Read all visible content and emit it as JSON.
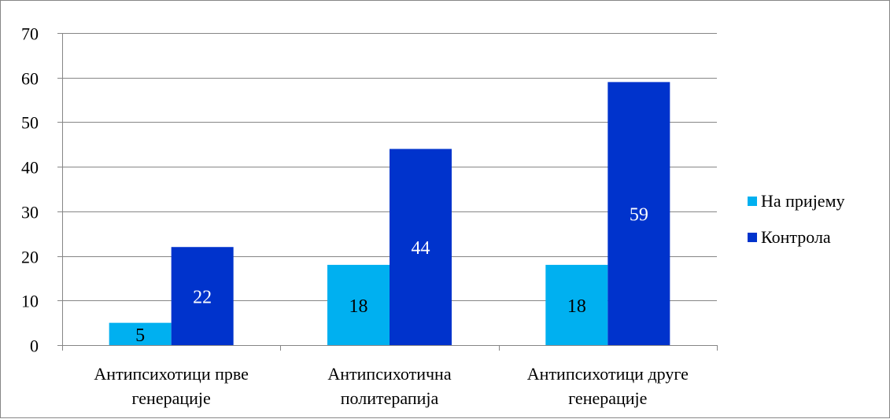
{
  "chart_data": {
    "type": "bar",
    "categories": [
      [
        "Антипсихотици прве",
        "генерације"
      ],
      [
        "Антипсихотична",
        "политерапија"
      ],
      [
        "Антипсихотици друге",
        "генерације"
      ]
    ],
    "series": [
      {
        "name": "На пријему",
        "values": [
          5,
          18,
          18
        ],
        "color": "#00B0F0",
        "label_color": "#000000"
      },
      {
        "name": "Контрола",
        "values": [
          22,
          44,
          59
        ],
        "color": "#0033CC",
        "label_color": "#ffffff"
      }
    ],
    "title": "",
    "xlabel": "",
    "ylabel": "",
    "ylim": [
      0,
      70
    ],
    "yticks": [
      0,
      10,
      20,
      30,
      40,
      50,
      60,
      70
    ],
    "grid": true,
    "legend_position": "right"
  }
}
